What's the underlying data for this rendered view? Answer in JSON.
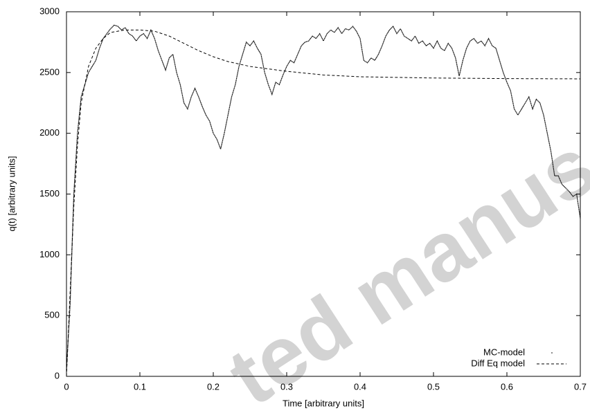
{
  "chart_data": {
    "type": "line",
    "xlabel": "Time [arbitrary units]",
    "ylabel": "q(t) [arbitrary units]",
    "watermark": "ted manus",
    "xlim": [
      0,
      0.7
    ],
    "xticks": [
      0,
      0.1,
      0.2,
      0.3,
      0.4,
      0.5,
      0.6,
      0.7
    ],
    "ylim": [
      0,
      3000
    ],
    "yticks": [
      0,
      500,
      1000,
      1500,
      2000,
      2500,
      3000
    ],
    "grid": false,
    "legend": "lower right",
    "series": [
      {
        "name": "MC-model",
        "color": "#000000",
        "line_style": "dots",
        "x": [
          0,
          0.005,
          0.01,
          0.015,
          0.02,
          0.025,
          0.03,
          0.035,
          0.04,
          0.045,
          0.05,
          0.055,
          0.06,
          0.065,
          0.07,
          0.075,
          0.08,
          0.085,
          0.09,
          0.095,
          0.1,
          0.105,
          0.11,
          0.115,
          0.12,
          0.125,
          0.13,
          0.135,
          0.14,
          0.145,
          0.15,
          0.155,
          0.16,
          0.165,
          0.17,
          0.175,
          0.18,
          0.185,
          0.19,
          0.195,
          0.2,
          0.205,
          0.21,
          0.215,
          0.22,
          0.225,
          0.23,
          0.235,
          0.24,
          0.245,
          0.25,
          0.255,
          0.26,
          0.265,
          0.27,
          0.275,
          0.28,
          0.285,
          0.29,
          0.295,
          0.3,
          0.305,
          0.31,
          0.315,
          0.32,
          0.325,
          0.33,
          0.335,
          0.34,
          0.345,
          0.35,
          0.355,
          0.36,
          0.365,
          0.37,
          0.375,
          0.38,
          0.385,
          0.39,
          0.395,
          0.4,
          0.405,
          0.41,
          0.415,
          0.42,
          0.425,
          0.43,
          0.435,
          0.44,
          0.445,
          0.45,
          0.455,
          0.46,
          0.465,
          0.47,
          0.475,
          0.48,
          0.485,
          0.49,
          0.495,
          0.5,
          0.505,
          0.51,
          0.515,
          0.52,
          0.525,
          0.53,
          0.535,
          0.54,
          0.545,
          0.55,
          0.555,
          0.56,
          0.565,
          0.57,
          0.575,
          0.58,
          0.585,
          0.59,
          0.595,
          0.6,
          0.605,
          0.61,
          0.615,
          0.62,
          0.625,
          0.63,
          0.635,
          0.64,
          0.645,
          0.65,
          0.655,
          0.66,
          0.665,
          0.67,
          0.675,
          0.68,
          0.685,
          0.69,
          0.695,
          0.7
        ],
        "values": [
          50,
          600,
          1500,
          2000,
          2300,
          2400,
          2500,
          2550,
          2600,
          2700,
          2780,
          2820,
          2860,
          2890,
          2880,
          2850,
          2870,
          2820,
          2800,
          2760,
          2800,
          2820,
          2780,
          2850,
          2780,
          2680,
          2600,
          2520,
          2620,
          2650,
          2500,
          2400,
          2250,
          2200,
          2300,
          2370,
          2300,
          2220,
          2150,
          2100,
          2000,
          1950,
          1870,
          2000,
          2150,
          2300,
          2400,
          2550,
          2650,
          2750,
          2720,
          2760,
          2700,
          2650,
          2500,
          2400,
          2320,
          2420,
          2400,
          2480,
          2550,
          2600,
          2580,
          2650,
          2720,
          2750,
          2760,
          2800,
          2780,
          2820,
          2760,
          2820,
          2850,
          2830,
          2870,
          2820,
          2860,
          2850,
          2880,
          2840,
          2780,
          2600,
          2580,
          2620,
          2600,
          2650,
          2720,
          2800,
          2850,
          2880,
          2820,
          2860,
          2800,
          2780,
          2760,
          2800,
          2740,
          2760,
          2720,
          2740,
          2700,
          2760,
          2700,
          2680,
          2740,
          2700,
          2620,
          2470,
          2600,
          2700,
          2760,
          2780,
          2740,
          2760,
          2720,
          2780,
          2720,
          2700,
          2600,
          2500,
          2420,
          2350,
          2200,
          2150,
          2200,
          2250,
          2300,
          2200,
          2280,
          2250,
          2150,
          2000,
          1850,
          1650,
          1650,
          1580,
          1550,
          1520,
          1480,
          1500,
          1300
        ]
      },
      {
        "name": "Diff Eq model",
        "color": "#000000",
        "line_style": "dashed",
        "x": [
          0,
          0.005,
          0.01,
          0.015,
          0.02,
          0.03,
          0.04,
          0.05,
          0.06,
          0.08,
          0.1,
          0.12,
          0.14,
          0.16,
          0.18,
          0.2,
          0.22,
          0.25,
          0.3,
          0.35,
          0.4,
          0.5,
          0.6,
          0.7
        ],
        "values": [
          0,
          700,
          1400,
          1900,
          2250,
          2550,
          2700,
          2780,
          2830,
          2850,
          2850,
          2840,
          2800,
          2740,
          2680,
          2630,
          2590,
          2550,
          2510,
          2480,
          2465,
          2455,
          2450,
          2448
        ]
      }
    ]
  }
}
